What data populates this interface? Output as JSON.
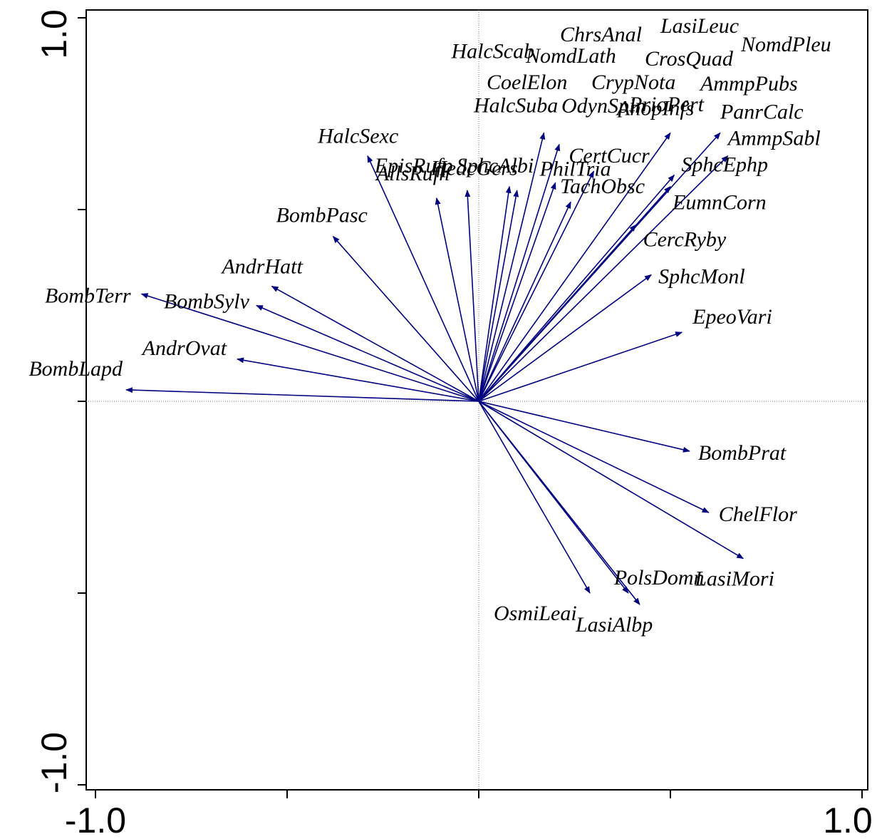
{
  "chart_data": {
    "type": "scatter",
    "subtype": "biplot-arrows",
    "title": "",
    "xlabel": "",
    "ylabel": "",
    "xlim": [
      -1.0,
      1.0
    ],
    "ylim": [
      -1.0,
      1.0
    ],
    "x_tick_labels": [
      "-1.0",
      "1.0"
    ],
    "y_tick_labels": [
      "1.0",
      "-1.0"
    ],
    "reference_lines": "dotted lines at x = 0 and y = 0",
    "grid": false,
    "legend": "none",
    "arrow_color": "#000080",
    "species": [
      {
        "name": "BombLapd",
        "x": -0.92,
        "y": 0.03
      },
      {
        "name": "AndrOvat",
        "x": -0.63,
        "y": 0.11
      },
      {
        "name": "BombTerr",
        "x": -0.88,
        "y": 0.28
      },
      {
        "name": "BombSylv",
        "x": -0.58,
        "y": 0.25
      },
      {
        "name": "AndrHatt",
        "x": -0.54,
        "y": 0.3
      },
      {
        "name": "BombPasc",
        "x": -0.38,
        "y": 0.43
      },
      {
        "name": "HalcSexc",
        "x": -0.29,
        "y": 0.64
      },
      {
        "name": "AllsRufh",
        "x": -0.11,
        "y": 0.53
      },
      {
        "name": "SphcAlbi",
        "x": -0.03,
        "y": 0.55
      },
      {
        "name": "HedcGers",
        "x": 0.08,
        "y": 0.56
      },
      {
        "name": "EpisRufp",
        "x": 0.1,
        "y": 0.55
      },
      {
        "name": "HalcScab",
        "x": 0.17,
        "y": 0.7
      },
      {
        "name": "HalcSuba",
        "x": 0.21,
        "y": 0.67
      },
      {
        "name": "PhilTria",
        "x": 0.2,
        "y": 0.57
      },
      {
        "name": "TachObsc",
        "x": 0.24,
        "y": 0.52
      },
      {
        "name": "CertCucr",
        "x": 0.3,
        "y": 0.6
      },
      {
        "name": "AnopInfs",
        "x": 0.5,
        "y": 0.7
      },
      {
        "name": "PanrCalc",
        "x": 0.63,
        "y": 0.7
      },
      {
        "name": "AmmpSabl",
        "x": 0.65,
        "y": 0.64
      },
      {
        "name": "SphcEphp",
        "x": 0.51,
        "y": 0.59
      },
      {
        "name": "EumnCorn",
        "x": 0.5,
        "y": 0.56
      },
      {
        "name": "CercRyby",
        "x": 0.41,
        "y": 0.46
      },
      {
        "name": "SphcMonl",
        "x": 0.45,
        "y": 0.33
      },
      {
        "name": "EpeoVari",
        "x": 0.53,
        "y": 0.18
      },
      {
        "name": "BombPrat",
        "x": 0.55,
        "y": -0.13
      },
      {
        "name": "ChelFlor",
        "x": 0.6,
        "y": -0.29
      },
      {
        "name": "LasiMori",
        "x": 0.69,
        "y": -0.41
      },
      {
        "name": "PolsDomn",
        "x": 0.39,
        "y": -0.5
      },
      {
        "name": "LasiAlbp",
        "x": 0.42,
        "y": -0.53
      },
      {
        "name": "OsmiLeai",
        "x": 0.29,
        "y": -0.5
      }
    ],
    "label_only": [
      "ChrsAnal",
      "LasiLeuc",
      "NomdPleu",
      "NomdLath",
      "CrosQuad",
      "CoelElon",
      "CrypNota",
      "AmmpPubs",
      "OdynSpin",
      "PrioPert"
    ]
  }
}
